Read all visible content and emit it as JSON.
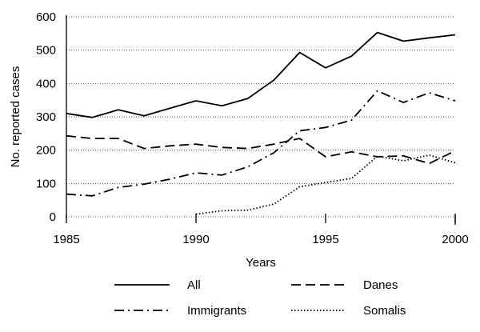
{
  "chart_data": {
    "type": "line",
    "xlabel": "Years",
    "ylabel": "No. reported cases",
    "xlim": [
      1985,
      2000
    ],
    "ylim": [
      0,
      600
    ],
    "xticks": [
      "1985",
      "1990",
      "1995",
      "2000"
    ],
    "yticks": [
      "0",
      "100",
      "200",
      "300",
      "400",
      "500",
      "600"
    ],
    "grid": "horizontal dotted",
    "legend_position": "bottom",
    "series": [
      {
        "name": "All",
        "style": "solid",
        "x": [
          1985,
          1986,
          1987,
          1988,
          1989,
          1990,
          1991,
          1992,
          1993,
          1994,
          1995,
          1996,
          1997,
          1998,
          1999,
          2000
        ],
        "values": [
          310,
          298,
          321,
          303,
          326,
          348,
          333,
          355,
          410,
          493,
          447,
          482,
          553,
          527,
          537,
          546
        ]
      },
      {
        "name": "Danes",
        "style": "dashed",
        "x": [
          1985,
          1986,
          1987,
          1988,
          1989,
          1990,
          1991,
          1992,
          1993,
          1994,
          1995,
          1996,
          1997,
          1998,
          1999,
          2000
        ],
        "values": [
          243,
          235,
          235,
          205,
          213,
          218,
          208,
          205,
          218,
          235,
          180,
          195,
          180,
          183,
          160,
          198
        ]
      },
      {
        "name": "Immigrants",
        "style": "dashdot",
        "x": [
          1985,
          1986,
          1987,
          1988,
          1989,
          1990,
          1991,
          1992,
          1993,
          1994,
          1995,
          1996,
          1997,
          1998,
          1999,
          2000
        ],
        "values": [
          68,
          63,
          88,
          98,
          113,
          132,
          125,
          150,
          192,
          258,
          268,
          290,
          378,
          343,
          372,
          348
        ]
      },
      {
        "name": "Somalis",
        "style": "dotted",
        "x": [
          1990,
          1991,
          1992,
          1993,
          1994,
          1995,
          1996,
          1997,
          1998,
          1999,
          2000
        ],
        "values": [
          8,
          18,
          20,
          38,
          90,
          103,
          115,
          182,
          168,
          185,
          162
        ]
      }
    ]
  }
}
